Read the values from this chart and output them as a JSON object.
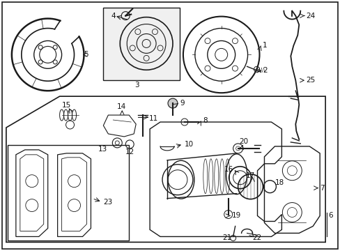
{
  "bg_color": "#ffffff",
  "line_color": "#1a1a1a",
  "text_color": "#111111",
  "light_gray": "#e0e0e0",
  "fig_width": 4.89,
  "fig_height": 3.6,
  "dpi": 100
}
